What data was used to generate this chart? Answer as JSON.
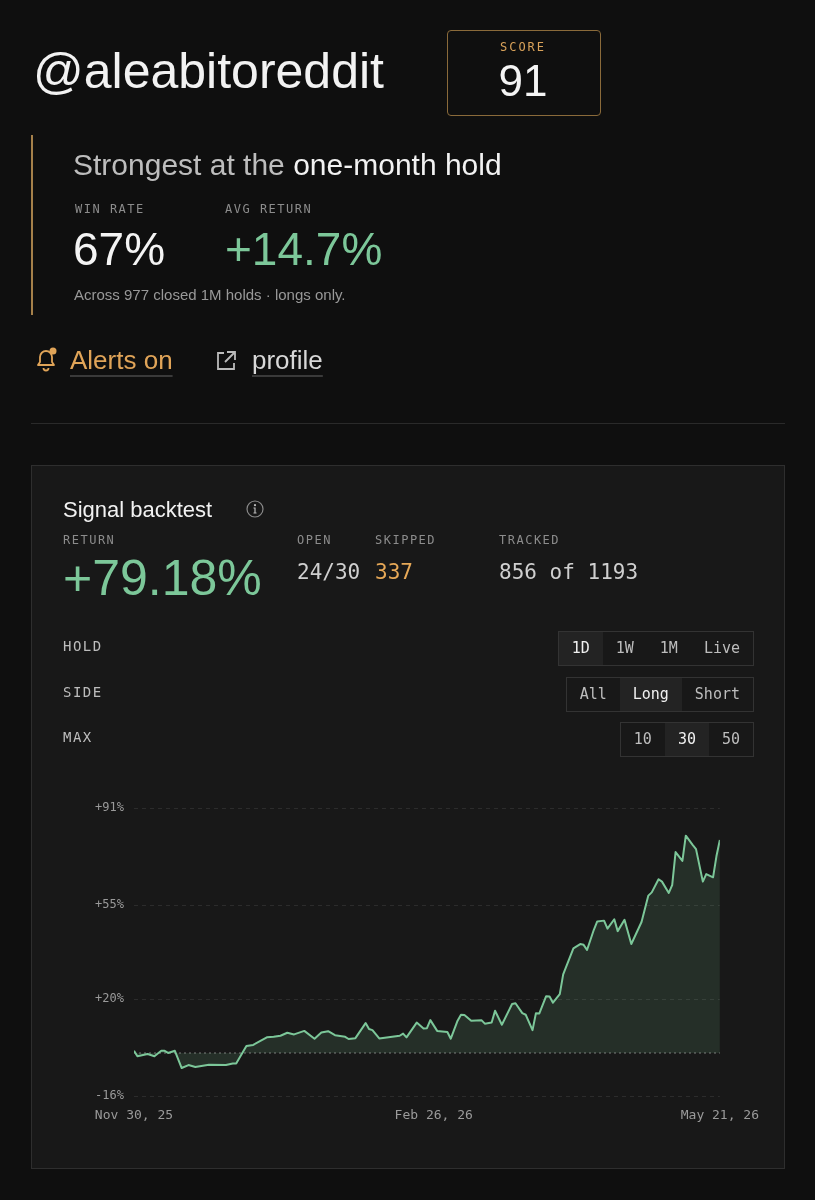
{
  "chart_data": [
    {
      "type": "other",
      "title": "@aleabitoreddit",
      "annotations": [
        "SCORE",
        "91",
        "Strongest at the",
        "one-month hold",
        "WIN RATE",
        "67%",
        "AVG RETURN",
        "+14.7%",
        "Across 977 closed 1M holds · longs only.",
        "Alerts on",
        "profile"
      ]
    },
    {
      "type": "area",
      "title": "Signal backtest",
      "annotations": [
        "RETURN",
        "+79.18%",
        "OPEN",
        "24/30",
        "SKIPPED",
        "337",
        "TRACKED",
        "856 of 1193",
        "HOLD",
        "1D",
        "1W",
        "1M",
        "Live",
        "SIDE",
        "All",
        "Long",
        "Short",
        "MAX",
        "10",
        "30",
        "50"
      ],
      "x": [
        "2025-11-30",
        "2025-12-01",
        "2025-12-04",
        "2025-12-06",
        "2025-12-08",
        "2025-12-09",
        "2025-12-10",
        "2025-12-12",
        "2025-12-14",
        "2025-12-16",
        "2025-12-18",
        "2025-12-22",
        "2025-12-27",
        "2025-12-29",
        "2025-12-30",
        "2026-01-02",
        "2026-01-04",
        "2026-01-08",
        "2026-01-10",
        "2026-01-12",
        "2026-01-14",
        "2026-01-16",
        "2026-01-19",
        "2026-01-22",
        "2026-01-24",
        "2026-01-26",
        "2026-01-28",
        "2026-01-31",
        "2026-02-01",
        "2026-02-03",
        "2026-02-06",
        "2026-02-07",
        "2026-02-08",
        "2026-02-10",
        "2026-02-16",
        "2026-02-17",
        "2026-02-18",
        "2026-02-21",
        "2026-02-23",
        "2026-02-24",
        "2026-02-25",
        "2026-02-27",
        "2026-03-02",
        "2026-03-03",
        "2026-03-05",
        "2026-03-06",
        "2026-03-07",
        "2026-03-09",
        "2026-03-12",
        "2026-03-13",
        "2026-03-15",
        "2026-03-16",
        "2026-03-18",
        "2026-03-21",
        "2026-03-22",
        "2026-03-24",
        "2026-03-25",
        "2026-03-27",
        "2026-03-28",
        "2026-03-29",
        "2026-03-31",
        "2026-04-01",
        "2026-04-02",
        "2026-04-04",
        "2026-04-05",
        "2026-04-08",
        "2026-04-10",
        "2026-04-11",
        "2026-04-12",
        "2026-04-14",
        "2026-04-15",
        "2026-04-17",
        "2026-04-18",
        "2026-04-20",
        "2026-04-21",
        "2026-04-23",
        "2026-04-25",
        "2026-04-28",
        "2026-04-30",
        "2026-05-01",
        "2026-05-03",
        "2026-05-04",
        "2026-05-06",
        "2026-05-07",
        "2026-05-08",
        "2026-05-10",
        "2026-05-11",
        "2026-05-13",
        "2026-05-14",
        "2026-05-16",
        "2026-05-17",
        "2026-05-19",
        "2026-05-20",
        "2026-05-21"
      ],
      "series": [
        {
          "color": "#7cc799",
          "values": [
            0.8,
            -1.2,
            -0.4,
            -1.2,
            0.8,
            0.8,
            0,
            0.8,
            -5.6,
            -4.5,
            -5.2,
            -4.4,
            -4.5,
            -3.9,
            -3.9,
            2.6,
            3.0,
            5.8,
            6.0,
            6.4,
            7.5,
            6.9,
            8.2,
            5.3,
            7.6,
            8.1,
            6.6,
            6.0,
            5.2,
            5.5,
            11.1,
            8.9,
            8.5,
            5.4,
            6.4,
            7.2,
            5.8,
            11.3,
            9.1,
            9.2,
            12.2,
            8.2,
            7.8,
            5.3,
            12.0,
            14.2,
            14.1,
            12.0,
            12.2,
            10.9,
            11.3,
            15.7,
            10.5,
            18.2,
            18.5,
            14.8,
            14.2,
            8.5,
            14.8,
            14.7,
            21.1,
            21.0,
            18.7,
            21.9,
            29.2,
            38.9,
            40.5,
            40.2,
            38.3,
            45.8,
            48.9,
            49.2,
            46.2,
            49.7,
            45.3,
            49.5,
            40.5,
            48.7,
            58.5,
            59.7,
            64.6,
            63.7,
            59.5,
            62.4,
            74.7,
            71.4,
            80.8,
            77.4,
            75.8,
            63.7,
            66.5,
            65.3,
            73.2,
            79.2
          ]
        }
      ],
      "xlim": [
        "2025-11-30",
        "2026-05-21"
      ],
      "xticks": [
        {
          "value": "2025-11-30",
          "label": "Nov 30, 25"
        },
        {
          "value": "2026-02-26",
          "label": "Feb 26, 26"
        },
        {
          "value": "2026-05-21",
          "label": "May 21, 26"
        }
      ],
      "ylim": [
        -16,
        91
      ],
      "yticks": [
        {
          "value": -16,
          "label": "-16%"
        },
        {
          "value": 20,
          "label": "+20%"
        },
        {
          "value": 55,
          "label": "+55%"
        },
        {
          "value": 91,
          "label": "+91%"
        }
      ],
      "grid": "y",
      "ref_lines": [
        {
          "axis": "y",
          "value": 0,
          "line_style": "dotted"
        }
      ]
    }
  ]
}
